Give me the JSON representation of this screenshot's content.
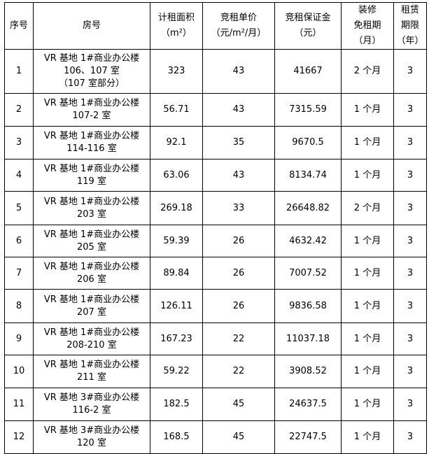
{
  "headers": [
    {
      "lines": [
        "序号"
      ]
    },
    {
      "lines": [
        "房号"
      ]
    },
    {
      "lines": [
        "计租面积",
        "（m²）"
      ]
    },
    {
      "lines": [
        "竞租单价",
        "（元/m²/月）"
      ]
    },
    {
      "lines": [
        "竞租保证金",
        "（元）"
      ]
    },
    {
      "lines": [
        "装修",
        "免租期",
        "（月）"
      ]
    },
    {
      "lines": [
        "租赁",
        "期限",
        "（年）"
      ]
    }
  ],
  "rows": [
    {
      "no": "1",
      "room": [
        "VR 基地 1#商业办公楼",
        "106、107 室",
        "（107 室部分）"
      ],
      "area": "323",
      "price": "43",
      "deposit": "41667",
      "free": "2 个月",
      "term": "3"
    },
    {
      "no": "2",
      "room": [
        "VR 基地 1#商业办公楼",
        "107-2 室"
      ],
      "area": "56.71",
      "price": "43",
      "deposit": "7315.59",
      "free": "1 个月",
      "term": "3"
    },
    {
      "no": "3",
      "room": [
        "VR 基地 1#商业办公楼",
        "114-116 室"
      ],
      "area": "92.1",
      "price": "35",
      "deposit": "9670.5",
      "free": "1 个月",
      "term": "3"
    },
    {
      "no": "4",
      "room": [
        "VR 基地 1#商业办公楼",
        "119 室"
      ],
      "area": "63.06",
      "price": "43",
      "deposit": "8134.74",
      "free": "1 个月",
      "term": "3"
    },
    {
      "no": "5",
      "room": [
        "VR 基地 1#商业办公楼",
        "203 室"
      ],
      "area": "269.18",
      "price": "33",
      "deposit": "26648.82",
      "free": "2 个月",
      "term": "3"
    },
    {
      "no": "6",
      "room": [
        "VR 基地 1#商业办公楼",
        "205 室"
      ],
      "area": "59.39",
      "price": "26",
      "deposit": "4632.42",
      "free": "1 个月",
      "term": "3"
    },
    {
      "no": "7",
      "room": [
        "VR 基地 1#商业办公楼",
        "206 室"
      ],
      "area": "89.84",
      "price": "26",
      "deposit": "7007.52",
      "free": "1 个月",
      "term": "3"
    },
    {
      "no": "8",
      "room": [
        "VR 基地 1#商业办公楼",
        "207 室"
      ],
      "area": "126.11",
      "price": "26",
      "deposit": "9836.58",
      "free": "1 个月",
      "term": "3"
    },
    {
      "no": "9",
      "room": [
        "VR 基地 1#商业办公楼",
        "208-210 室"
      ],
      "area": "167.23",
      "price": "22",
      "deposit": "11037.18",
      "free": "1 个月",
      "term": "3"
    },
    {
      "no": "10",
      "room": [
        "VR 基地 1#商业办公楼",
        "211 室"
      ],
      "area": "59.22",
      "price": "22",
      "deposit": "3908.52",
      "free": "1 个月",
      "term": "3"
    },
    {
      "no": "11",
      "room": [
        "VR 基地 3#商业办公楼",
        "116-2 室"
      ],
      "area": "182.5",
      "price": "45",
      "deposit": "24637.5",
      "free": "1 个月",
      "term": "3"
    },
    {
      "no": "12",
      "room": [
        "VR 基地 3#商业办公楼",
        "120 室"
      ],
      "area": "168.5",
      "price": "45",
      "deposit": "22747.5",
      "free": "1 个月",
      "term": "3"
    }
  ]
}
